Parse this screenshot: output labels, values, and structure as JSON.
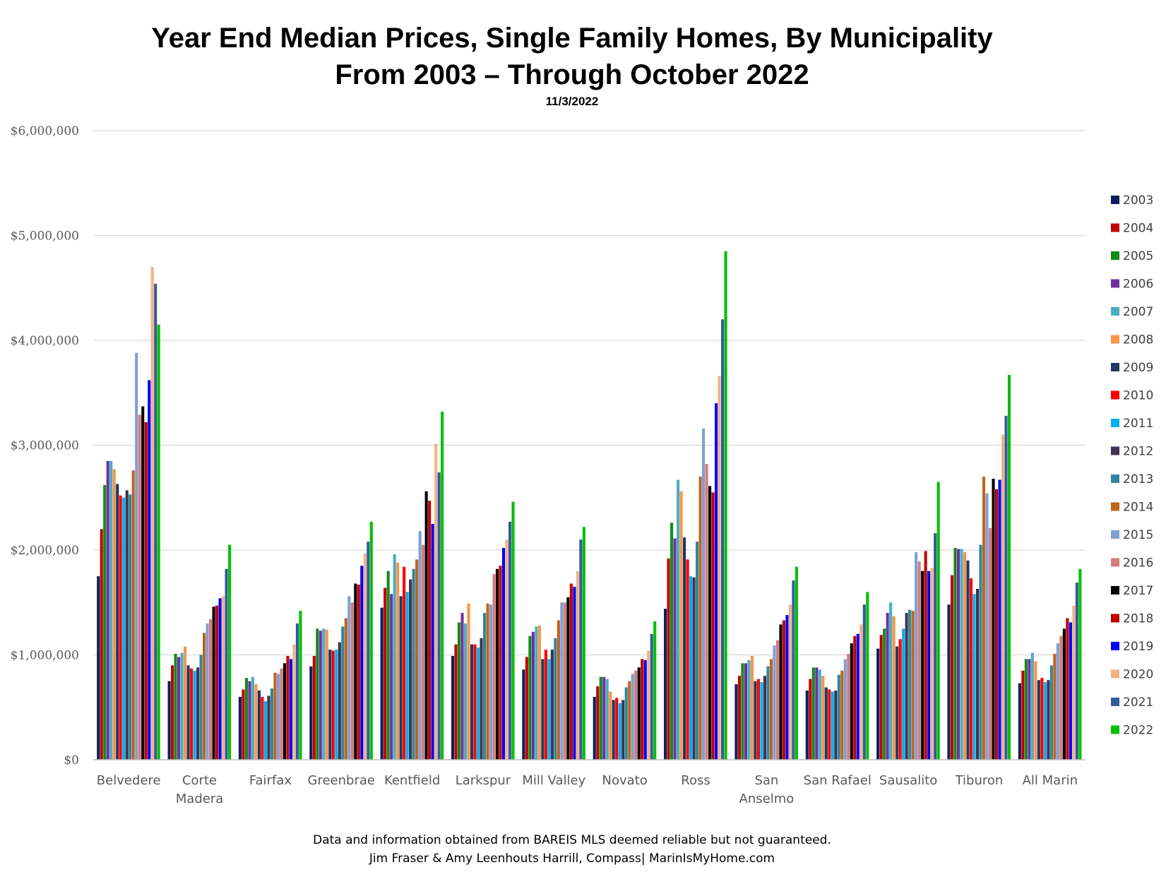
{
  "chart_data": {
    "type": "bar",
    "title": "Year End Median Prices, Single Family Homes, By Municipality",
    "subtitle": "From 2003 – Through October 2022",
    "date": "11/3/2022",
    "xlabel": "",
    "ylabel": "",
    "ylim": [
      0,
      6000000
    ],
    "yticks": [
      "$0",
      "$1,000,000",
      "$2,000,000",
      "$3,000,000",
      "$4,000,000",
      "$5,000,000",
      "$6,000,000"
    ],
    "grid": true,
    "legend_position": "right",
    "categories": [
      [
        "Belvedere"
      ],
      [
        "Corte",
        "Madera"
      ],
      [
        "Fairfax"
      ],
      [
        "Greenbrae"
      ],
      [
        "Kentfield"
      ],
      [
        "Larkspur"
      ],
      [
        "Mill Valley"
      ],
      [
        "Novato"
      ],
      [
        "Ross"
      ],
      [
        "San",
        "Anselmo"
      ],
      [
        "San Rafael"
      ],
      [
        "Sausalito"
      ],
      [
        "Tiburon"
      ],
      [
        "All Marin"
      ]
    ],
    "series": [
      {
        "name": "2003",
        "color": "#0b1f5c",
        "values": [
          1750000,
          750000,
          600000,
          890000,
          1450000,
          990000,
          860000,
          600000,
          1440000,
          720000,
          660000,
          1060000,
          1480000,
          730000
        ]
      },
      {
        "name": "2004",
        "color": "#c00000",
        "values": [
          2200000,
          900000,
          670000,
          990000,
          1640000,
          1100000,
          980000,
          700000,
          1920000,
          800000,
          770000,
          1190000,
          1760000,
          850000
        ]
      },
      {
        "name": "2005",
        "color": "#128a1a",
        "values": [
          2620000,
          1010000,
          780000,
          1250000,
          1800000,
          1310000,
          1180000,
          790000,
          2260000,
          920000,
          880000,
          1250000,
          2020000,
          960000
        ]
      },
      {
        "name": "2006",
        "color": "#7030a0",
        "values": [
          2850000,
          980000,
          750000,
          1230000,
          1580000,
          1400000,
          1220000,
          790000,
          2110000,
          920000,
          880000,
          1400000,
          2010000,
          960000
        ]
      },
      {
        "name": "2007",
        "color": "#4bacc6",
        "values": [
          2850000,
          1020000,
          790000,
          1250000,
          1960000,
          1300000,
          1270000,
          770000,
          2670000,
          950000,
          860000,
          1500000,
          2010000,
          1020000
        ]
      },
      {
        "name": "2008",
        "color": "#f79646",
        "values": [
          2770000,
          1080000,
          720000,
          1240000,
          1880000,
          1490000,
          1280000,
          650000,
          2560000,
          990000,
          800000,
          1370000,
          1980000,
          940000
        ]
      },
      {
        "name": "2009",
        "color": "#1f3864",
        "values": [
          2630000,
          900000,
          660000,
          1050000,
          1560000,
          1100000,
          960000,
          570000,
          2120000,
          750000,
          690000,
          1080000,
          1900000,
          760000
        ]
      },
      {
        "name": "2010",
        "color": "#ff0000",
        "values": [
          2520000,
          870000,
          600000,
          1040000,
          1840000,
          1100000,
          1050000,
          590000,
          1910000,
          770000,
          670000,
          1150000,
          1730000,
          780000
        ]
      },
      {
        "name": "2011",
        "color": "#00b0f0",
        "values": [
          2500000,
          850000,
          560000,
          1050000,
          1600000,
          1070000,
          960000,
          540000,
          1750000,
          740000,
          650000,
          1250000,
          1580000,
          740000
        ]
      },
      {
        "name": "2012",
        "color": "#403151",
        "values": [
          2570000,
          880000,
          610000,
          1120000,
          1720000,
          1160000,
          1050000,
          570000,
          1740000,
          800000,
          660000,
          1400000,
          1630000,
          760000
        ]
      },
      {
        "name": "2013",
        "color": "#31859c",
        "values": [
          2530000,
          1000000,
          680000,
          1270000,
          1820000,
          1400000,
          1160000,
          690000,
          2080000,
          890000,
          810000,
          1430000,
          2050000,
          900000
        ]
      },
      {
        "name": "2014",
        "color": "#c0641b",
        "values": [
          2760000,
          1210000,
          830000,
          1350000,
          1910000,
          1490000,
          1330000,
          750000,
          2700000,
          960000,
          850000,
          1420000,
          2700000,
          1010000
        ]
      },
      {
        "name": "2015",
        "color": "#7f9fd4",
        "values": [
          3880000,
          1300000,
          820000,
          1560000,
          2180000,
          1480000,
          1500000,
          820000,
          3160000,
          1090000,
          960000,
          1980000,
          2540000,
          1110000
        ]
      },
      {
        "name": "2016",
        "color": "#d47b7b",
        "values": [
          3290000,
          1340000,
          870000,
          1500000,
          2050000,
          1770000,
          1500000,
          850000,
          2820000,
          1140000,
          1010000,
          1890000,
          2210000,
          1180000
        ]
      },
      {
        "name": "2017",
        "color": "#000000",
        "values": [
          3370000,
          1460000,
          920000,
          1680000,
          2560000,
          1820000,
          1550000,
          880000,
          2610000,
          1290000,
          1110000,
          1800000,
          2680000,
          1250000
        ]
      },
      {
        "name": "2018",
        "color": "#c00000",
        "values": [
          3220000,
          1470000,
          990000,
          1670000,
          2470000,
          1850000,
          1680000,
          960000,
          2550000,
          1330000,
          1180000,
          1990000,
          2580000,
          1350000
        ]
      },
      {
        "name": "2019",
        "color": "#0000ff",
        "values": [
          3620000,
          1540000,
          960000,
          1850000,
          2250000,
          2020000,
          1650000,
          950000,
          3400000,
          1380000,
          1200000,
          1800000,
          2670000,
          1310000
        ]
      },
      {
        "name": "2020",
        "color": "#f4b183",
        "values": [
          4700000,
          1560000,
          1100000,
          1970000,
          3010000,
          2100000,
          1800000,
          1040000,
          3660000,
          1480000,
          1290000,
          1830000,
          3100000,
          1470000
        ]
      },
      {
        "name": "2021",
        "color": "#335b9b",
        "values": [
          4540000,
          1820000,
          1300000,
          2080000,
          2740000,
          2270000,
          2100000,
          1200000,
          4200000,
          1710000,
          1480000,
          2160000,
          3280000,
          1690000
        ]
      },
      {
        "name": "2022",
        "color": "#00c000",
        "values": [
          4150000,
          2050000,
          1420000,
          2270000,
          3320000,
          2460000,
          2220000,
          1320000,
          4850000,
          1840000,
          1600000,
          2650000,
          3670000,
          1820000
        ]
      }
    ]
  },
  "footer": {
    "line1": "Data and information obtained from BAREIS MLS deemed reliable but not guaranteed.",
    "line2": "Jim Fraser & Amy Leenhouts Harrill, Compass| MarinIsMyHome.com"
  },
  "colors": {
    "grid": "#d9d9d9",
    "axis": "#bfbfbf",
    "text_gray": "#595959"
  }
}
